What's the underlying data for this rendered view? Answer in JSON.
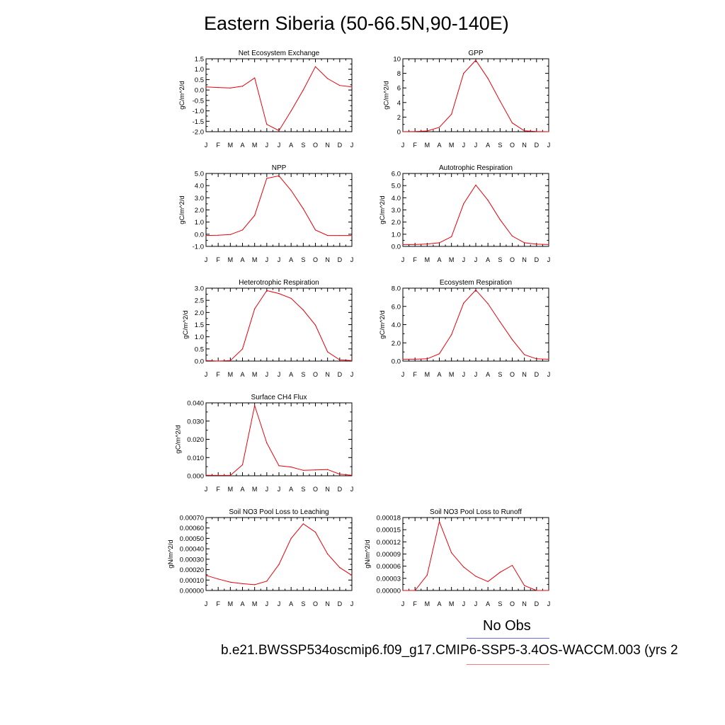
{
  "title": "Eastern Siberia (50-66.5N,90-140E)",
  "legend": {
    "obs_label": "No Obs",
    "case_label": "b.e21.BWSSP534oscmip6.f09_g17.CMIP6-SSP5-3.4OS-WACCM.003 (yrs 2",
    "obs_color": "#6a6cf0",
    "case_color": "#f08080"
  },
  "chart_data": [
    {
      "type": "line",
      "title": "Net Ecosystem Exchange",
      "ylabel": "gC/m^2/d",
      "x": [
        "J",
        "F",
        "M",
        "A",
        "M",
        "J",
        "J",
        "A",
        "S",
        "O",
        "N",
        "D",
        "J"
      ],
      "ylim": [
        -2.0,
        1.5
      ],
      "yticks": [
        "1.5",
        "1.0",
        "0.5",
        "0.0",
        "-0.5",
        "-1.0",
        "-1.5",
        "-2.0"
      ],
      "series": [
        {
          "color": "#e8000b",
          "values": [
            0.15,
            0.12,
            0.1,
            0.18,
            0.58,
            -1.65,
            -1.95,
            -1.0,
            0.0,
            1.12,
            0.55,
            0.22,
            0.15
          ]
        }
      ]
    },
    {
      "type": "line",
      "title": "GPP",
      "ylabel": "gC/m^2/d",
      "x": [
        "J",
        "F",
        "M",
        "A",
        "M",
        "J",
        "J",
        "A",
        "S",
        "O",
        "N",
        "D",
        "J"
      ],
      "ylim": [
        0,
        10
      ],
      "yticks": [
        "10",
        "8",
        "6",
        "4",
        "2",
        "0"
      ],
      "series": [
        {
          "color": "#e8000b",
          "values": [
            0.0,
            0.02,
            0.1,
            0.6,
            2.4,
            8.0,
            9.8,
            7.3,
            4.2,
            1.2,
            0.12,
            0.02,
            0.0
          ]
        }
      ]
    },
    {
      "type": "line",
      "title": "NPP",
      "ylabel": "gC/m^2/d",
      "x": [
        "J",
        "F",
        "M",
        "A",
        "M",
        "J",
        "J",
        "A",
        "S",
        "O",
        "N",
        "D",
        "J"
      ],
      "ylim": [
        -1.0,
        5.0
      ],
      "yticks": [
        "5.0",
        "4.0",
        "3.0",
        "2.0",
        "1.0",
        "0.0",
        "-1.0"
      ],
      "series": [
        {
          "color": "#e8000b",
          "values": [
            -0.1,
            -0.08,
            -0.03,
            0.35,
            1.55,
            4.6,
            4.8,
            3.6,
            2.1,
            0.35,
            -0.1,
            -0.1,
            -0.1
          ]
        }
      ]
    },
    {
      "type": "line",
      "title": "Autotrophic Respiration",
      "ylabel": "gC/m^2/d",
      "x": [
        "J",
        "F",
        "M",
        "A",
        "M",
        "J",
        "J",
        "A",
        "S",
        "O",
        "N",
        "D",
        "J"
      ],
      "ylim": [
        0,
        6.0
      ],
      "yticks": [
        "6.0",
        "5.0",
        "4.0",
        "3.0",
        "2.0",
        "1.0",
        "0.0"
      ],
      "series": [
        {
          "color": "#e8000b",
          "values": [
            0.15,
            0.15,
            0.2,
            0.3,
            0.8,
            3.5,
            5.05,
            3.8,
            2.2,
            0.85,
            0.3,
            0.18,
            0.15
          ]
        }
      ]
    },
    {
      "type": "line",
      "title": "Heterotrophic Respiration",
      "ylabel": "gC/m^2/d",
      "x": [
        "J",
        "F",
        "M",
        "A",
        "M",
        "J",
        "J",
        "A",
        "S",
        "O",
        "N",
        "D",
        "J"
      ],
      "ylim": [
        0,
        3.0
      ],
      "yticks": [
        "3.0",
        "2.5",
        "2.0",
        "1.5",
        "1.0",
        "0.5",
        "0.0"
      ],
      "series": [
        {
          "color": "#e8000b",
          "values": [
            0.02,
            0.0,
            0.02,
            0.5,
            2.15,
            2.9,
            2.78,
            2.58,
            2.1,
            1.48,
            0.38,
            0.05,
            0.02
          ]
        }
      ]
    },
    {
      "type": "line",
      "title": "Ecosystem Respiration",
      "ylabel": "gC/m^2/d",
      "x": [
        "J",
        "F",
        "M",
        "A",
        "M",
        "J",
        "J",
        "A",
        "S",
        "O",
        "N",
        "D",
        "J"
      ],
      "ylim": [
        0,
        8.0
      ],
      "yticks": [
        "8.0",
        "6.0",
        "4.0",
        "2.0",
        "0.0"
      ],
      "series": [
        {
          "color": "#e8000b",
          "values": [
            0.2,
            0.2,
            0.25,
            0.8,
            2.9,
            6.35,
            7.8,
            6.3,
            4.3,
            2.35,
            0.7,
            0.25,
            0.2
          ]
        }
      ]
    },
    {
      "type": "line",
      "title": "Surface CH4 Flux",
      "ylabel": "gC/m^2/d",
      "x": [
        "J",
        "F",
        "M",
        "A",
        "M",
        "J",
        "J",
        "A",
        "S",
        "O",
        "N",
        "D",
        "J"
      ],
      "ylim": [
        0,
        0.04
      ],
      "yticks": [
        "0.040",
        "0.030",
        "0.020",
        "0.010",
        "0.000"
      ],
      "series": [
        {
          "color": "#e8000b",
          "values": [
            0.0003,
            0.0002,
            0.0002,
            0.006,
            0.0385,
            0.018,
            0.0055,
            0.0048,
            0.003,
            0.0032,
            0.0034,
            0.0009,
            0.0003
          ]
        }
      ]
    },
    {
      "type": "line",
      "title": "Soil NO3 Pool Loss to Leaching",
      "ylabel": "gN/m^2/d",
      "x": [
        "J",
        "F",
        "M",
        "A",
        "M",
        "J",
        "J",
        "A",
        "S",
        "O",
        "N",
        "D",
        "J"
      ],
      "ylim": [
        0,
        0.0007
      ],
      "yticks": [
        "0.00070",
        "0.00060",
        "0.00050",
        "0.00040",
        "0.00030",
        "0.00020",
        "0.00010",
        "0.00000"
      ],
      "series": [
        {
          "color": "#e8000b",
          "values": [
            0.000145,
            0.00011,
            8e-05,
            6.5e-05,
            5.5e-05,
            9e-05,
            0.00025,
            0.0005,
            0.00064,
            0.00056,
            0.00035,
            0.00022,
            0.000145
          ]
        }
      ]
    },
    {
      "type": "line",
      "title": "Soil NO3 Pool Loss to Runoff",
      "ylabel": "gN/m^2/d",
      "x": [
        "J",
        "F",
        "M",
        "A",
        "M",
        "J",
        "J",
        "A",
        "S",
        "O",
        "N",
        "D",
        "J"
      ],
      "ylim": [
        0,
        0.00018
      ],
      "yticks": [
        "0.00018",
        "0.00015",
        "0.00012",
        "0.00009",
        "0.00006",
        "0.00003",
        "0.00000"
      ],
      "series": [
        {
          "color": "#e8000b",
          "values": [
            0.0,
            0.0,
            3.8e-05,
            0.00017,
            9.3e-05,
            5.8e-05,
            3.5e-05,
            2.2e-05,
            4.5e-05,
            6.2e-05,
            1.2e-05,
            0.0,
            0.0
          ]
        }
      ]
    }
  ]
}
